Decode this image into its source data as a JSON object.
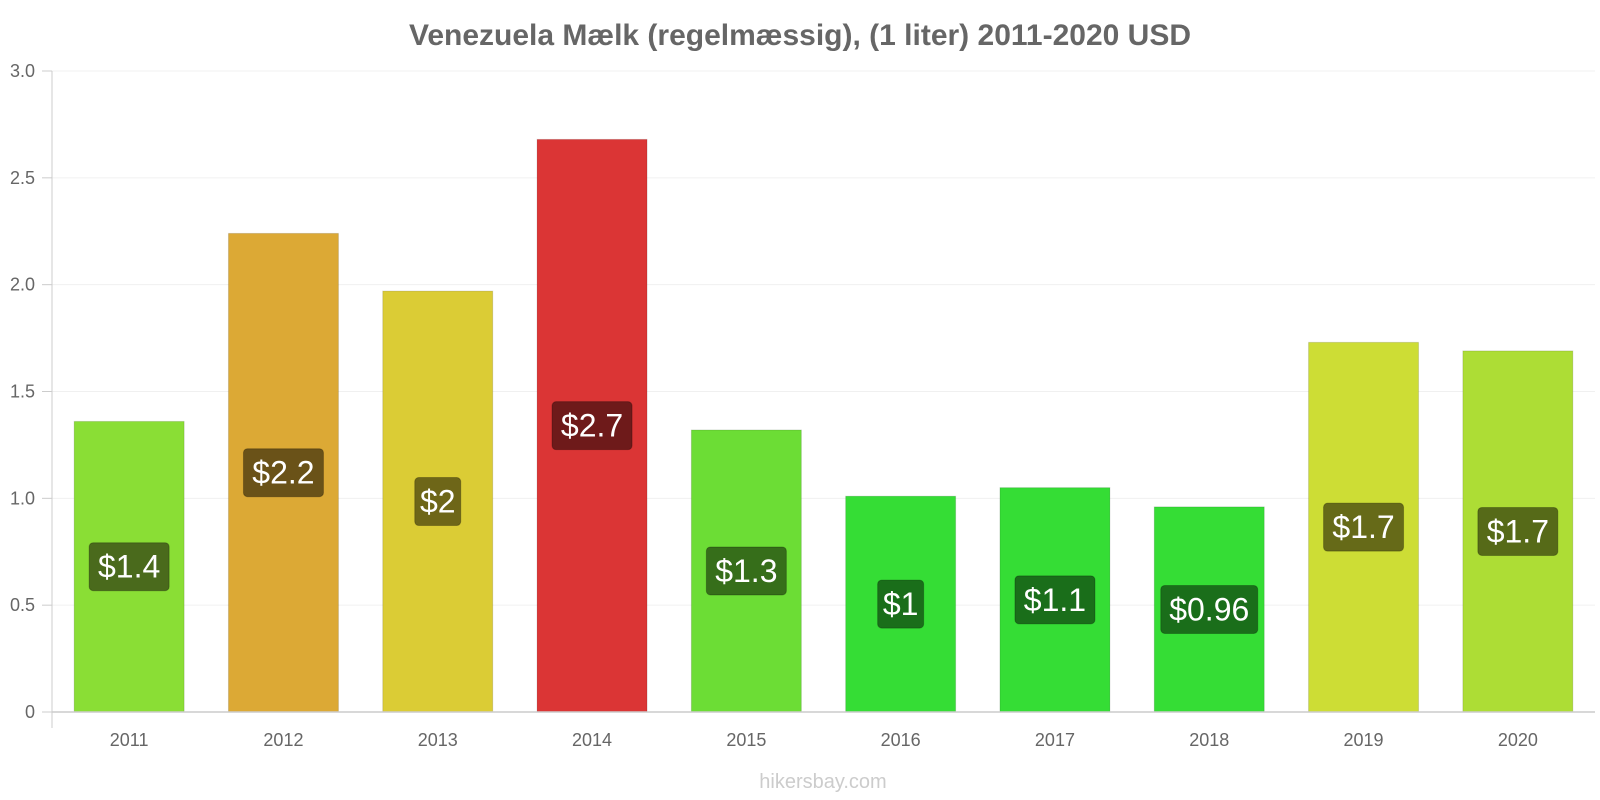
{
  "chart_data": {
    "type": "bar",
    "title": "Venezuela Mælk (regelmæssig), (1 liter) 2011-2020 USD",
    "categories": [
      "2011",
      "2012",
      "2013",
      "2014",
      "2015",
      "2016",
      "2017",
      "2018",
      "2019",
      "2020"
    ],
    "values": [
      1.36,
      2.24,
      1.97,
      2.68,
      1.32,
      1.01,
      1.05,
      0.96,
      1.73,
      1.69
    ],
    "data_labels": [
      "$1.4",
      "$2.2",
      "$2",
      "$2.7",
      "$1.3",
      "$1",
      "$1.1",
      "$0.96",
      "$1.7",
      "$1.7"
    ],
    "bar_colors": [
      "#8ade35",
      "#dca935",
      "#dbcc35",
      "#db3535",
      "#6cdd35",
      "#35dd35",
      "#35dd35",
      "#35dd35",
      "#cddd35",
      "#addd35"
    ],
    "label_bg_colors": [
      "#4a6a1c",
      "#6a5218",
      "#6e6618",
      "#6e1a1a",
      "#366e1a",
      "#1a6e1a",
      "#1a6e1a",
      "#1a6e1a",
      "#666a18",
      "#566a18"
    ],
    "ylim": [
      0,
      3.0
    ],
    "yticks": [
      0,
      0.5,
      1.0,
      1.5,
      2.0,
      2.5,
      3.0
    ],
    "ytick_labels": [
      "0",
      "0.5",
      "1.0",
      "1.5",
      "2.0",
      "2.5",
      "3.0"
    ],
    "xlabel": "",
    "ylabel": "",
    "grid": true,
    "legend": "none"
  },
  "watermark": "hikersbay.com"
}
